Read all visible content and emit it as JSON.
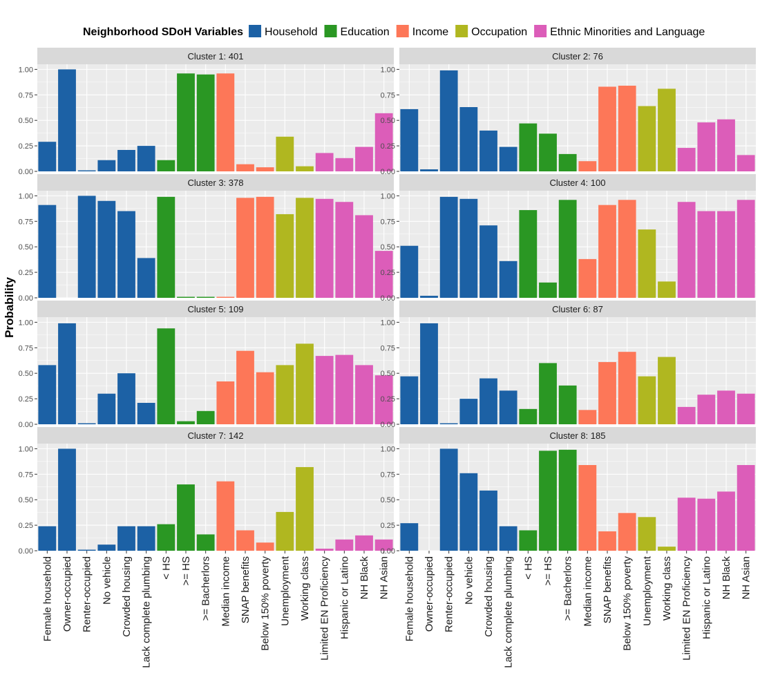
{
  "chart_data": {
    "type": "bar",
    "ylabel": "Probability",
    "ylim": [
      0,
      1.05
    ],
    "yticks": [
      0,
      0.25,
      0.5,
      0.75,
      1.0
    ],
    "ytick_labels": [
      "0.00",
      "0.25",
      "0.50",
      "0.75",
      "1.00"
    ],
    "grid": true,
    "legend": {
      "title": "Neighborhood SDoH Variables",
      "placement": "top",
      "entries": [
        {
          "name": "Household",
          "color": "#1c61a5"
        },
        {
          "name": "Education",
          "color": "#2a9723"
        },
        {
          "name": "Income",
          "color": "#fd7758"
        },
        {
          "name": "Occupation",
          "color": "#b0b720"
        },
        {
          "name": "Ethnic Minorities and Language",
          "color": "#dc5db9"
        }
      ]
    },
    "categories": [
      "Female household",
      "Owner-occupied",
      "Renter-occupied",
      "No vehicle",
      "Crowded housing",
      "Lack complete plumbing",
      "< HS",
      ">= HS",
      ">= Bacherlors",
      "Median income",
      "SNAP benefits",
      "Below 150% poverty",
      "Unemployment",
      "Working class",
      "Limited EN Proficiency",
      "Hispanic or Latino",
      "NH Black",
      "NH Asian"
    ],
    "category_groups": [
      "Household",
      "Household",
      "Household",
      "Household",
      "Household",
      "Household",
      "Education",
      "Education",
      "Education",
      "Income",
      "Income",
      "Income",
      "Occupation",
      "Occupation",
      "Ethnic Minorities and Language",
      "Ethnic Minorities and Language",
      "Ethnic Minorities and Language",
      "Ethnic Minorities and Language"
    ],
    "panels": [
      {
        "title": "Cluster 1: 401",
        "values": [
          0.29,
          1.0,
          0.01,
          0.11,
          0.21,
          0.25,
          0.11,
          0.96,
          0.95,
          0.96,
          0.07,
          0.04,
          0.34,
          0.05,
          0.18,
          0.13,
          0.24,
          0.57
        ]
      },
      {
        "title": "Cluster 2: 76",
        "values": [
          0.61,
          0.02,
          0.99,
          0.63,
          0.4,
          0.24,
          0.47,
          0.37,
          0.17,
          0.1,
          0.83,
          0.84,
          0.64,
          0.81,
          0.23,
          0.48,
          0.51,
          0.16
        ]
      },
      {
        "title": "Cluster 3: 378",
        "values": [
          0.91,
          0.0,
          1.0,
          0.95,
          0.85,
          0.39,
          0.99,
          0.01,
          0.01,
          0.01,
          0.98,
          0.99,
          0.82,
          0.98,
          0.97,
          0.94,
          0.81,
          0.46
        ]
      },
      {
        "title": "Cluster 4: 100",
        "values": [
          0.51,
          0.02,
          0.99,
          0.97,
          0.71,
          0.36,
          0.86,
          0.15,
          0.96,
          0.38,
          0.91,
          0.96,
          0.67,
          0.16,
          0.94,
          0.85,
          0.85,
          0.96
        ]
      },
      {
        "title": "Cluster 5: 109",
        "values": [
          0.58,
          0.99,
          0.01,
          0.3,
          0.5,
          0.21,
          0.94,
          0.03,
          0.13,
          0.42,
          0.72,
          0.51,
          0.58,
          0.79,
          0.67,
          0.68,
          0.58,
          0.48
        ]
      },
      {
        "title": "Cluster 6: 87",
        "values": [
          0.47,
          0.99,
          0.01,
          0.25,
          0.45,
          0.33,
          0.15,
          0.6,
          0.38,
          0.14,
          0.61,
          0.71,
          0.47,
          0.66,
          0.17,
          0.29,
          0.33,
          0.3
        ]
      },
      {
        "title": "Cluster 7: 142",
        "values": [
          0.24,
          1.0,
          0.01,
          0.06,
          0.24,
          0.24,
          0.26,
          0.65,
          0.16,
          0.68,
          0.2,
          0.08,
          0.38,
          0.82,
          0.02,
          0.11,
          0.15,
          0.11
        ]
      },
      {
        "title": "Cluster 8: 185",
        "values": [
          0.27,
          0.0,
          1.0,
          0.76,
          0.59,
          0.24,
          0.2,
          0.98,
          0.99,
          0.84,
          0.19,
          0.37,
          0.33,
          0.04,
          0.52,
          0.51,
          0.58,
          0.84
        ]
      }
    ]
  }
}
